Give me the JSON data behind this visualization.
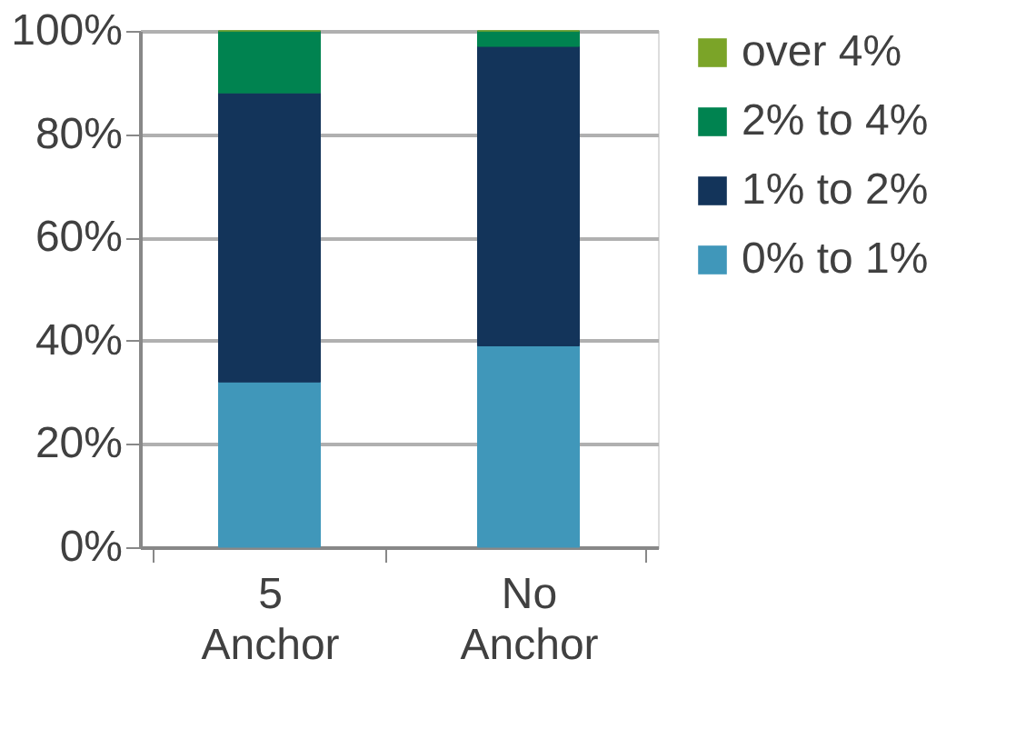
{
  "chart_data": {
    "type": "bar",
    "stacked": true,
    "categories": [
      "5 Anchor",
      "No Anchor"
    ],
    "series": [
      {
        "name": "0% to 1%",
        "color": "#4097ba",
        "values": [
          32,
          39
        ]
      },
      {
        "name": "1% to 2%",
        "color": "#13345a",
        "values": [
          56,
          58
        ]
      },
      {
        "name": "2% to 4%",
        "color": "#008350",
        "values": [
          12,
          3
        ]
      },
      {
        "name": "over 4%",
        "color": "#7ba428",
        "values": [
          0,
          0
        ]
      }
    ],
    "ylim": [
      0,
      100
    ],
    "yticks": [
      {
        "value": 0,
        "label": "0%"
      },
      {
        "value": 20,
        "label": "20%"
      },
      {
        "value": 40,
        "label": "40%"
      },
      {
        "value": 60,
        "label": "60%"
      },
      {
        "value": 80,
        "label": "80%"
      },
      {
        "value": 100,
        "label": "100%"
      }
    ],
    "grid": "y",
    "legend": "right"
  }
}
